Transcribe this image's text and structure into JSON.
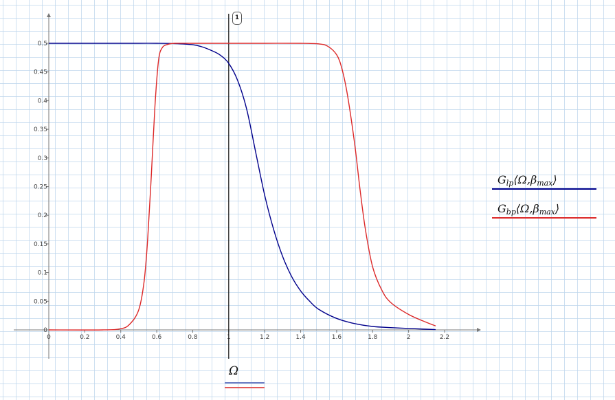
{
  "chart_data": {
    "type": "line",
    "title": "",
    "xlabel": "Ω",
    "ylabel": "",
    "xlim": [
      0,
      2.2
    ],
    "ylim": [
      0,
      0.5
    ],
    "grid": true,
    "legend_position": "right",
    "x_ticks": [
      "0",
      "0.2",
      "0.4",
      "0.6",
      "0.8",
      "1",
      "1.2",
      "1.4",
      "1.6",
      "1.8",
      "2",
      "2.2"
    ],
    "y_ticks": [
      "0",
      "0.05",
      "0.1",
      "0.15",
      "0.2",
      "0.25",
      "0.3",
      "0.35",
      "0.4",
      "0.45",
      "0.5"
    ],
    "marker": {
      "x": 1,
      "label": "1"
    },
    "series": [
      {
        "name": "G_lp(Ω,β_max)",
        "color": "#00008b",
        "x": [
          0,
          0.1,
          0.2,
          0.3,
          0.4,
          0.5,
          0.6,
          0.7,
          0.8,
          0.85,
          0.9,
          0.95,
          1.0,
          1.05,
          1.1,
          1.15,
          1.2,
          1.25,
          1.3,
          1.35,
          1.4,
          1.45,
          1.5,
          1.6,
          1.7,
          1.8,
          1.9,
          2.0,
          2.1,
          2.15
        ],
        "values": [
          0.5,
          0.5,
          0.5,
          0.5,
          0.5,
          0.5,
          0.5,
          0.4995,
          0.4975,
          0.494,
          0.488,
          0.48,
          0.465,
          0.435,
          0.385,
          0.31,
          0.235,
          0.175,
          0.128,
          0.093,
          0.068,
          0.05,
          0.036,
          0.02,
          0.011,
          0.006,
          0.004,
          0.0025,
          0.0012,
          0.0005
        ]
      },
      {
        "name": "G_bp(Ω,β_max)",
        "color": "#dc2828",
        "x": [
          0,
          0.3,
          0.4,
          0.45,
          0.5,
          0.53,
          0.55,
          0.57,
          0.59,
          0.61,
          0.63,
          0.66,
          0.7,
          0.8,
          1.0,
          1.2,
          1.4,
          1.5,
          1.55,
          1.6,
          1.63,
          1.66,
          1.7,
          1.73,
          1.76,
          1.8,
          1.85,
          1.9,
          2.0,
          2.1,
          2.15
        ],
        "values": [
          0,
          0,
          0.002,
          0.01,
          0.035,
          0.085,
          0.16,
          0.27,
          0.39,
          0.47,
          0.492,
          0.498,
          0.5,
          0.5,
          0.5,
          0.5,
          0.5,
          0.499,
          0.495,
          0.48,
          0.455,
          0.41,
          0.325,
          0.245,
          0.175,
          0.11,
          0.07,
          0.048,
          0.027,
          0.013,
          0.007
        ]
      }
    ]
  },
  "legend": {
    "items": [
      {
        "symbol": "G",
        "subscript": "lp",
        "args_open": "⟨Ω,β",
        "args_sub": "max",
        "args_close": "⟩",
        "color": "#00008b"
      },
      {
        "symbol": "G",
        "subscript": "bp",
        "args_open": "⟨Ω,β",
        "args_sub": "max",
        "args_close": "⟩",
        "color": "#dc2828"
      }
    ]
  },
  "x_variable": {
    "label": "Ω",
    "line_colors": [
      "#6f7fc4",
      "#e35a5a"
    ]
  }
}
